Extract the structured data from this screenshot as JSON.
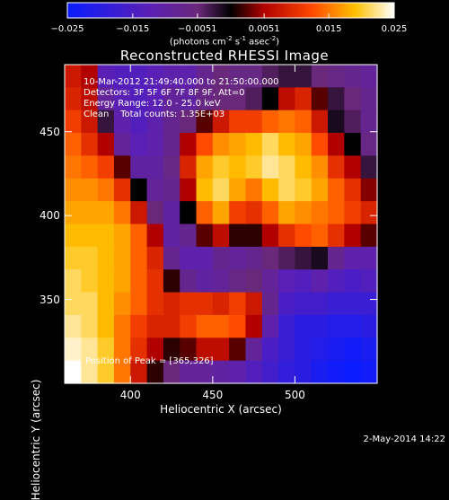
{
  "chart_data": {
    "type": "heatmap",
    "title": "Reconstructed RHESSI Image",
    "xlabel": "Heliocentric X (arcsec)",
    "ylabel": "Heliocentric Y (arcsec)",
    "xlim": [
      360,
      550
    ],
    "ylim": [
      300,
      490
    ],
    "x_ticks": [
      "400",
      "450",
      "500"
    ],
    "y_ticks": [
      "350",
      "400",
      "450"
    ],
    "colorbar": {
      "min": -0.025,
      "max": 0.025,
      "tick_labels": [
        "-0.025",
        "-0.015",
        "-0.0051",
        "0.0051",
        "0.015",
        "0.025"
      ],
      "units_text": "(photons cm",
      "units_exp1": "-2",
      "units_mid": " s",
      "units_exp2": "-1",
      "units_mid2": " asec",
      "units_exp3": "-2",
      "units_end": ")"
    },
    "annotations": {
      "time_range": "10-Mar-2012 21:49:40.000 to 21:50:00.000",
      "detectors": "Detectors: 3F 5F 6F 7F 8F 9F, Att=0",
      "energy_range": "Energy Range: 12.0 - 25.0 keV",
      "clean_counts": "Clean    Total counts: 1.35E+03",
      "peak": "Position of Peak = [365,326]"
    },
    "grid": [
      [
        0.3,
        0.2,
        -0.5,
        -0.55,
        -0.55,
        -0.5,
        -0.45,
        -0.45,
        -0.3,
        -0.2,
        -0.25,
        -0.25,
        -0.15,
        -0.1,
        -0.1,
        -0.2,
        -0.25,
        -0.3,
        -0.35
      ],
      [
        0.35,
        0.25,
        -0.35,
        -0.5,
        -0.55,
        -0.5,
        -0.35,
        -0.4,
        -0.25,
        -0.2,
        -0.2,
        -0.15,
        0.0,
        0.25,
        0.35,
        0.1,
        -0.1,
        -0.2,
        -0.3
      ],
      [
        0.45,
        0.3,
        -0.1,
        -0.45,
        -0.55,
        -0.45,
        -0.3,
        -0.2,
        0.1,
        0.3,
        0.45,
        0.45,
        0.55,
        0.6,
        0.55,
        0.3,
        -0.05,
        -0.15,
        -0.3
      ],
      [
        0.55,
        0.4,
        0.2,
        -0.35,
        -0.5,
        -0.45,
        -0.3,
        0.2,
        0.5,
        0.65,
        0.7,
        0.75,
        0.85,
        0.75,
        0.7,
        0.5,
        0.2,
        0.0,
        -0.25
      ],
      [
        0.6,
        0.55,
        0.45,
        0.1,
        -0.4,
        -0.4,
        -0.25,
        0.35,
        0.7,
        0.8,
        0.75,
        0.8,
        0.9,
        0.85,
        0.75,
        0.65,
        0.4,
        0.2,
        -0.1
      ],
      [
        0.65,
        0.65,
        0.6,
        0.4,
        0.0,
        -0.35,
        -0.3,
        0.2,
        0.75,
        0.85,
        0.7,
        0.6,
        0.75,
        0.85,
        0.8,
        0.7,
        0.55,
        0.4,
        0.15
      ],
      [
        0.7,
        0.7,
        0.7,
        0.6,
        0.3,
        -0.2,
        -0.4,
        0.0,
        0.55,
        0.7,
        0.45,
        0.4,
        0.55,
        0.7,
        0.65,
        0.6,
        0.55,
        0.45,
        0.35
      ],
      [
        0.75,
        0.75,
        0.75,
        0.7,
        0.55,
        0.2,
        -0.4,
        -0.3,
        0.1,
        0.25,
        0.05,
        0.05,
        0.2,
        0.4,
        0.5,
        0.55,
        0.4,
        0.2,
        0.1
      ],
      [
        0.8,
        0.8,
        0.75,
        0.7,
        0.55,
        0.35,
        -0.3,
        -0.45,
        -0.45,
        -0.3,
        -0.35,
        -0.3,
        -0.2,
        -0.15,
        -0.1,
        -0.05,
        -0.3,
        -0.45,
        -0.45
      ],
      [
        0.85,
        0.8,
        0.75,
        0.7,
        0.55,
        0.4,
        0.05,
        -0.3,
        -0.4,
        -0.35,
        -0.25,
        -0.2,
        -0.35,
        -0.5,
        -0.55,
        -0.45,
        -0.55,
        -0.6,
        -0.55
      ],
      [
        0.85,
        0.85,
        0.75,
        0.65,
        0.55,
        0.4,
        0.35,
        0.4,
        0.4,
        0.35,
        0.45,
        0.3,
        -0.3,
        -0.6,
        -0.65,
        -0.65,
        -0.7,
        -0.7,
        -0.7
      ],
      [
        0.9,
        0.85,
        0.75,
        0.6,
        0.45,
        0.35,
        0.35,
        0.45,
        0.55,
        0.55,
        0.5,
        0.2,
        -0.45,
        -0.7,
        -0.8,
        -0.8,
        -0.85,
        -0.85,
        -0.8
      ],
      [
        0.95,
        0.9,
        0.8,
        0.6,
        0.4,
        0.2,
        0.05,
        0.1,
        0.25,
        0.25,
        0.1,
        -0.35,
        -0.6,
        -0.7,
        -0.8,
        -0.85,
        -0.9,
        -0.95,
        -0.9
      ],
      [
        1.0,
        0.9,
        0.8,
        0.6,
        0.3,
        0.05,
        -0.2,
        -0.35,
        -0.35,
        -0.4,
        -0.45,
        -0.55,
        -0.65,
        -0.75,
        -0.8,
        -0.9,
        -0.95,
        -1.0,
        -0.95
      ]
    ]
  }
}
